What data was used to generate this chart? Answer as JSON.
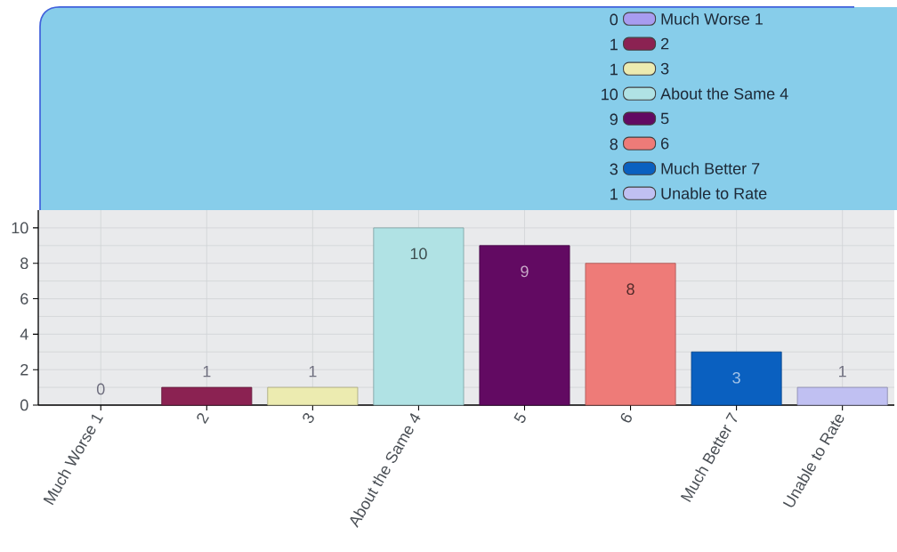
{
  "chart_data": {
    "type": "bar",
    "categories": [
      "Much Worse 1",
      "2",
      "3",
      "About the Same 4",
      "5",
      "6",
      "Much Better 7",
      "Unable to Rate"
    ],
    "series": [
      {
        "name": "Much Worse 1",
        "color": "#a89cf0",
        "values": [
          0,
          null,
          null,
          null,
          null,
          null,
          null,
          null
        ],
        "value_labels": [
          "0",
          null,
          null,
          null,
          null,
          null,
          null,
          null
        ]
      },
      {
        "name": "2",
        "color": "#8b2252",
        "values": [
          null,
          1,
          null,
          null,
          null,
          null,
          null,
          null
        ],
        "value_labels": [
          null,
          "1",
          null,
          null,
          null,
          null,
          null,
          null
        ]
      },
      {
        "name": "3",
        "color": "#ecebb0",
        "values": [
          null,
          null,
          1,
          null,
          null,
          null,
          null,
          null
        ],
        "value_labels": [
          null,
          null,
          "1",
          null,
          null,
          null,
          null,
          null
        ]
      },
      {
        "name": "About the Same 4",
        "color": "#b0e2e4",
        "values": [
          null,
          null,
          null,
          10,
          null,
          null,
          null,
          null
        ],
        "value_labels": [
          null,
          null,
          null,
          "10",
          null,
          null,
          null,
          null
        ]
      },
      {
        "name": "5",
        "color": "#620a62",
        "values": [
          null,
          null,
          null,
          null,
          9,
          null,
          null,
          null
        ],
        "value_labels": [
          null,
          null,
          null,
          null,
          "9",
          null,
          null,
          null
        ]
      },
      {
        "name": "6",
        "color": "#ee7b78",
        "values": [
          null,
          null,
          null,
          null,
          null,
          8,
          null,
          null
        ],
        "value_labels": [
          null,
          null,
          null,
          null,
          null,
          "8",
          null,
          null
        ]
      },
      {
        "name": "Much Better 7",
        "color": "#0a60c0",
        "values": [
          null,
          null,
          null,
          null,
          null,
          null,
          3,
          null
        ],
        "value_labels": [
          null,
          null,
          null,
          null,
          null,
          null,
          "3",
          null
        ]
      },
      {
        "name": "Unable to Rate",
        "color": "#c0c0f2",
        "values": [
          null,
          null,
          null,
          null,
          null,
          null,
          null,
          1
        ],
        "value_labels": [
          null,
          null,
          null,
          null,
          null,
          null,
          null,
          "1"
        ]
      }
    ],
    "ylim": [
      0,
      11
    ],
    "yticks": [
      0,
      2,
      4,
      6,
      8,
      10
    ],
    "grid": true,
    "legend": "top right"
  }
}
